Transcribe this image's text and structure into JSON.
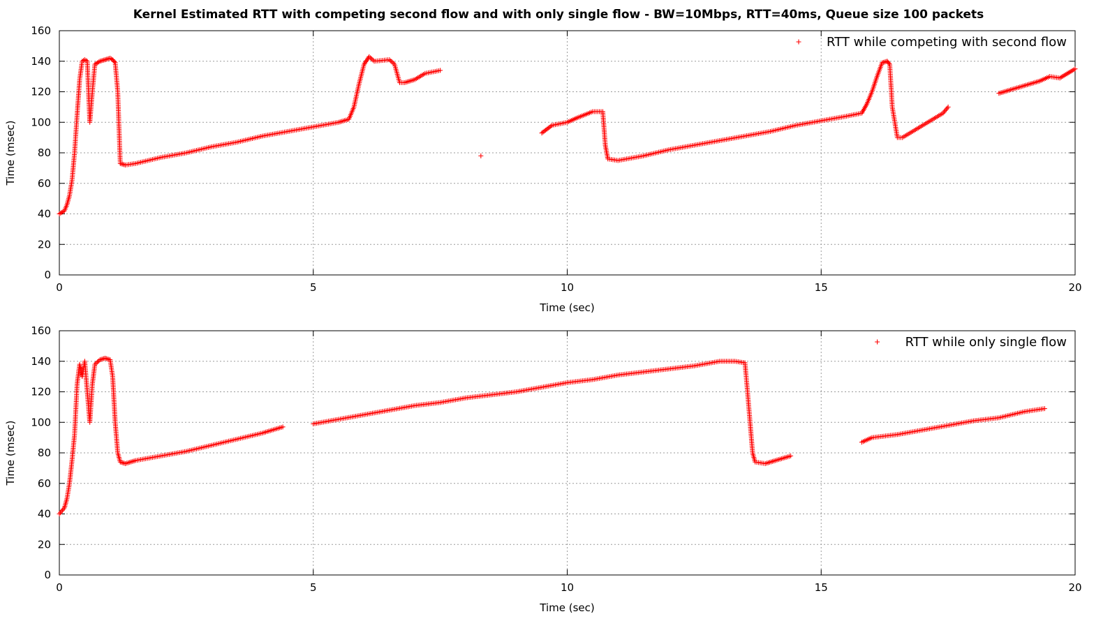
{
  "title": "Kernel Estimated RTT with competing second flow and with only single flow - BW=10Mbps, RTT=40ms, Queue size 100 packets",
  "colors": {
    "series": "#ff0000",
    "grid": "#9a9a9a",
    "axis": "#000000"
  },
  "chart_data": [
    {
      "type": "scatter",
      "xlabel": "Time (sec)",
      "ylabel": "Time (msec)",
      "xlim": [
        0,
        20
      ],
      "ylim": [
        0,
        160
      ],
      "xticks": [
        0,
        5,
        10,
        15,
        20
      ],
      "yticks": [
        0,
        20,
        40,
        60,
        80,
        100,
        120,
        140,
        160
      ],
      "grid": true,
      "legend_position": "top-right",
      "series": [
        {
          "name": "RTT while competing with second flow",
          "marker": "+",
          "color": "#ff0000",
          "segments": [
            [
              [
                0,
                40
              ],
              [
                0.1,
                42
              ],
              [
                0.15,
                46
              ],
              [
                0.2,
                52
              ],
              [
                0.25,
                62
              ],
              [
                0.3,
                80
              ],
              [
                0.35,
                105
              ],
              [
                0.4,
                128
              ],
              [
                0.45,
                140
              ],
              [
                0.5,
                141
              ],
              [
                0.55,
                140
              ],
              [
                0.6,
                100
              ],
              [
                0.65,
                120
              ],
              [
                0.7,
                138
              ],
              [
                0.8,
                140
              ],
              [
                0.9,
                141
              ],
              [
                1.0,
                142
              ],
              [
                1.05,
                141
              ],
              [
                1.1,
                139
              ],
              [
                1.15,
                120
              ],
              [
                1.2,
                73
              ],
              [
                1.3,
                72
              ],
              [
                1.5,
                73
              ],
              [
                2.0,
                77
              ],
              [
                2.5,
                80
              ],
              [
                3.0,
                84
              ],
              [
                3.5,
                87
              ],
              [
                4.0,
                91
              ],
              [
                4.5,
                94
              ],
              [
                5.0,
                97
              ],
              [
                5.5,
                100
              ],
              [
                5.7,
                102
              ],
              [
                5.8,
                110
              ],
              [
                5.9,
                125
              ],
              [
                6.0,
                138
              ],
              [
                6.1,
                143
              ],
              [
                6.2,
                140
              ],
              [
                6.5,
                141
              ],
              [
                6.6,
                138
              ],
              [
                6.7,
                126
              ],
              [
                6.8,
                126
              ],
              [
                7.0,
                128
              ],
              [
                7.2,
                132
              ],
              [
                7.5,
                134
              ]
            ],
            [
              [
                8.3,
                78
              ]
            ],
            [
              [
                9.5,
                93
              ],
              [
                9.7,
                98
              ],
              [
                10.0,
                100
              ],
              [
                10.2,
                103
              ],
              [
                10.5,
                107
              ],
              [
                10.7,
                107
              ],
              [
                10.75,
                85
              ],
              [
                10.8,
                76
              ],
              [
                11.0,
                75
              ],
              [
                11.5,
                78
              ],
              [
                12.0,
                82
              ],
              [
                12.5,
                85
              ],
              [
                13.0,
                88
              ],
              [
                13.5,
                91
              ],
              [
                14.0,
                94
              ],
              [
                14.5,
                98
              ],
              [
                15.0,
                101
              ],
              [
                15.5,
                104
              ],
              [
                15.8,
                106
              ],
              [
                15.9,
                112
              ],
              [
                16.0,
                120
              ],
              [
                16.1,
                130
              ],
              [
                16.2,
                139
              ],
              [
                16.3,
                140
              ],
              [
                16.35,
                138
              ],
              [
                16.4,
                110
              ],
              [
                16.5,
                90
              ],
              [
                16.6,
                90
              ],
              [
                16.8,
                94
              ],
              [
                17.0,
                98
              ],
              [
                17.2,
                102
              ],
              [
                17.4,
                106
              ],
              [
                17.5,
                110
              ]
            ],
            [
              [
                18.5,
                119
              ],
              [
                18.7,
                121
              ],
              [
                19.0,
                124
              ],
              [
                19.3,
                127
              ],
              [
                19.5,
                130
              ],
              [
                19.7,
                129
              ],
              [
                20.0,
                135
              ]
            ]
          ]
        }
      ]
    },
    {
      "type": "scatter",
      "xlabel": "Time (sec)",
      "ylabel": "Time (msec)",
      "xlim": [
        0,
        20
      ],
      "ylim": [
        0,
        160
      ],
      "xticks": [
        0,
        5,
        10,
        15,
        20
      ],
      "yticks": [
        0,
        20,
        40,
        60,
        80,
        100,
        120,
        140,
        160
      ],
      "grid": true,
      "legend_position": "top-right",
      "series": [
        {
          "name": "RTT while only single flow",
          "marker": "+",
          "color": "#ff0000",
          "segments": [
            [
              [
                0,
                40
              ],
              [
                0.1,
                44
              ],
              [
                0.15,
                50
              ],
              [
                0.2,
                60
              ],
              [
                0.25,
                75
              ],
              [
                0.3,
                92
              ],
              [
                0.35,
                125
              ],
              [
                0.4,
                138
              ],
              [
                0.45,
                130
              ],
              [
                0.5,
                140
              ],
              [
                0.55,
                120
              ],
              [
                0.6,
                100
              ],
              [
                0.65,
                125
              ],
              [
                0.7,
                138
              ],
              [
                0.8,
                141
              ],
              [
                0.9,
                142
              ],
              [
                1.0,
                141
              ],
              [
                1.05,
                130
              ],
              [
                1.1,
                100
              ],
              [
                1.15,
                80
              ],
              [
                1.2,
                74
              ],
              [
                1.3,
                73
              ],
              [
                1.5,
                75
              ],
              [
                2.0,
                78
              ],
              [
                2.5,
                81
              ],
              [
                3.0,
                85
              ],
              [
                3.5,
                89
              ],
              [
                4.0,
                93
              ],
              [
                4.4,
                97
              ]
            ],
            [
              [
                5.0,
                99
              ],
              [
                5.5,
                102
              ],
              [
                6.0,
                105
              ],
              [
                6.5,
                108
              ],
              [
                7.0,
                111
              ],
              [
                7.5,
                113
              ],
              [
                8.0,
                116
              ],
              [
                8.5,
                118
              ],
              [
                9.0,
                120
              ],
              [
                9.5,
                123
              ],
              [
                10.0,
                126
              ],
              [
                10.5,
                128
              ],
              [
                11.0,
                131
              ],
              [
                11.5,
                133
              ],
              [
                12.0,
                135
              ],
              [
                12.5,
                137
              ],
              [
                13.0,
                140
              ],
              [
                13.3,
                140
              ],
              [
                13.5,
                139
              ],
              [
                13.55,
                120
              ],
              [
                13.6,
                100
              ],
              [
                13.65,
                80
              ],
              [
                13.7,
                74
              ],
              [
                13.9,
                73
              ],
              [
                14.1,
                75
              ],
              [
                14.4,
                78
              ]
            ],
            [
              [
                15.8,
                87
              ],
              [
                16.0,
                90
              ],
              [
                16.5,
                92
              ],
              [
                17.0,
                95
              ],
              [
                17.5,
                98
              ],
              [
                18.0,
                101
              ],
              [
                18.5,
                103
              ],
              [
                19.0,
                107
              ],
              [
                19.4,
                109
              ]
            ]
          ]
        }
      ]
    }
  ]
}
